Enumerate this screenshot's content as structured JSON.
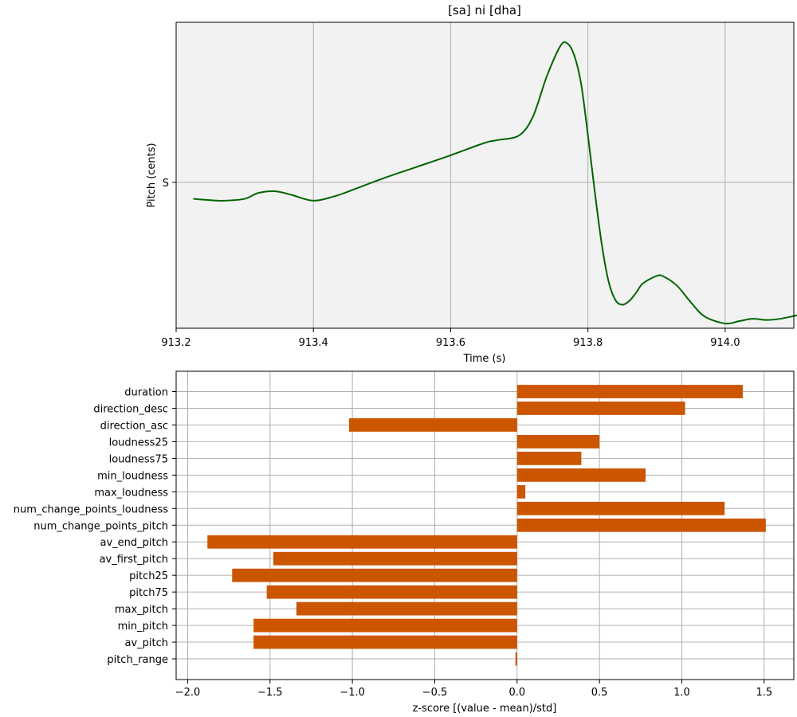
{
  "chart_data": [
    {
      "type": "line",
      "title": "[sa] ni [dha]",
      "xlabel": "Time (s)",
      "ylabel": "Pitch (cents)",
      "xlim": [
        913.2,
        914.1
      ],
      "ylim": [
        -620,
        680
      ],
      "x_ticks": [
        913.2,
        913.4,
        913.6,
        913.8,
        914.0
      ],
      "x_tick_labels": [
        "913.2",
        "913.4",
        "913.6",
        "913.8",
        "914.0"
      ],
      "y_ticks": [
        0
      ],
      "y_tick_labels": [
        "S"
      ],
      "grid": true,
      "background_color": "#f2f2f2",
      "series": [
        {
          "color": "#006400",
          "x": [
            913.225,
            913.25,
            913.27,
            913.3,
            913.32,
            913.345,
            913.37,
            913.4,
            913.43,
            913.45,
            913.5,
            913.55,
            913.6,
            913.65,
            913.67,
            913.7,
            913.72,
            913.74,
            913.76,
            913.77,
            913.78,
            913.79,
            913.8,
            913.81,
            913.82,
            913.83,
            913.84,
            913.85,
            913.86,
            913.87,
            913.88,
            913.9,
            913.91,
            913.93,
            913.95,
            913.97,
            914.0,
            914.02,
            914.04,
            914.06,
            914.08,
            914.105
          ],
          "y": [
            -70,
            -76,
            -78,
            -70,
            -45,
            -38,
            -55,
            -78,
            -60,
            -40,
            15,
            65,
            115,
            168,
            180,
            200,
            280,
            450,
            580,
            590,
            540,
            420,
            200,
            -40,
            -260,
            -420,
            -500,
            -520,
            -505,
            -470,
            -430,
            -398,
            -400,
            -440,
            -510,
            -570,
            -600,
            -590,
            -580,
            -585,
            -580,
            -565
          ]
        }
      ]
    },
    {
      "type": "bar",
      "orientation": "horizontal",
      "xlabel": "z-score [(value - mean)/std]",
      "ylabel": "",
      "xlim": [
        -2.07,
        1.68
      ],
      "x_ticks": [
        -2.0,
        -1.5,
        -1.0,
        -0.5,
        0.0,
        0.5,
        1.0,
        1.5
      ],
      "x_tick_labels": [
        "−2.0",
        "−1.5",
        "−1.0",
        "−0.5",
        "0.0",
        "0.5",
        "1.0",
        "1.5"
      ],
      "grid": true,
      "bar_color": "#cc5500",
      "categories": [
        "duration",
        "direction_desc",
        "direction_asc",
        "loudness25",
        "loudness75",
        "min_loudness",
        "max_loudness",
        "num_change_points_loudness",
        "num_change_points_pitch",
        "av_end_pitch",
        "av_first_pitch",
        "pitch25",
        "pitch75",
        "max_pitch",
        "min_pitch",
        "av_pitch",
        "pitch_range"
      ],
      "values": [
        1.37,
        1.02,
        -1.02,
        0.5,
        0.39,
        0.78,
        0.05,
        1.26,
        1.51,
        -1.88,
        -1.48,
        -1.73,
        -1.52,
        -1.34,
        -1.6,
        -1.6,
        -0.01
      ]
    }
  ]
}
